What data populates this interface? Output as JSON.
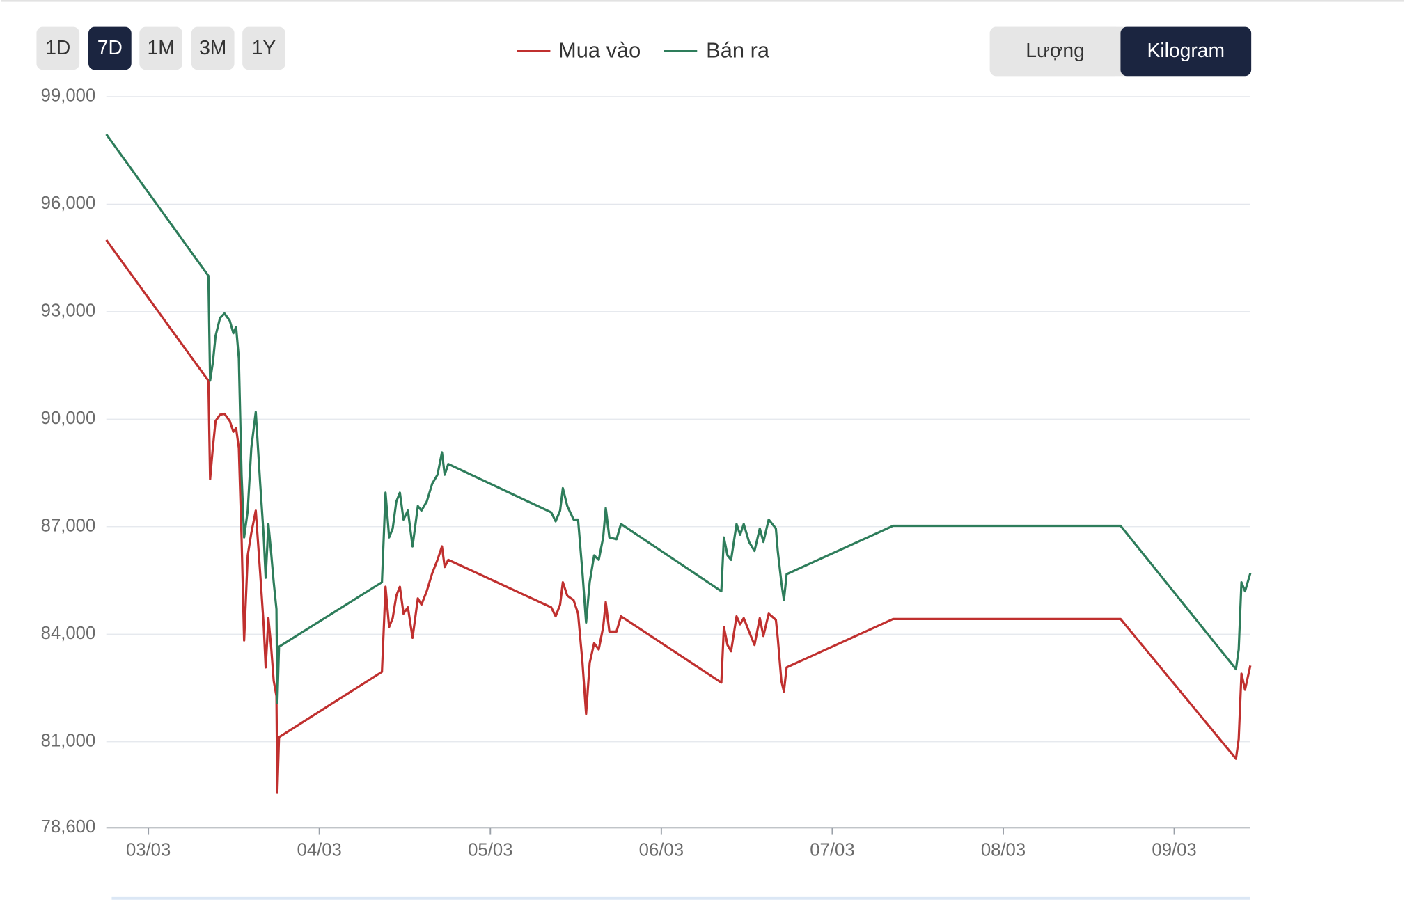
{
  "range_buttons": [
    "1D",
    "7D",
    "1M",
    "3M",
    "1Y"
  ],
  "selected_range": "7D",
  "unit_toggle": [
    "Lượng",
    "Kilogram"
  ],
  "selected_unit": "Kilogram",
  "chart_data": {
    "type": "line",
    "x": [
      2.754,
      3.351,
      3.361,
      3.377,
      3.393,
      3.419,
      3.445,
      3.476,
      3.497,
      3.513,
      3.529,
      3.545,
      3.56,
      3.581,
      3.602,
      3.628,
      3.654,
      3.675,
      3.686,
      3.702,
      3.717,
      3.733,
      3.749,
      3.754,
      3.764,
      4.366,
      4.387,
      4.408,
      4.429,
      4.45,
      4.471,
      4.492,
      4.518,
      4.545,
      4.576,
      4.597,
      4.628,
      4.66,
      4.691,
      4.717,
      4.733,
      4.754,
      5.356,
      5.382,
      5.408,
      5.424,
      5.45,
      5.487,
      5.513,
      5.539,
      5.56,
      5.581,
      5.607,
      5.634,
      5.66,
      5.675,
      5.696,
      5.738,
      5.764,
      6.351,
      6.366,
      6.387,
      6.408,
      6.44,
      6.461,
      6.482,
      6.513,
      6.545,
      6.576,
      6.597,
      6.628,
      6.67,
      6.681,
      6.702,
      6.717,
      6.733,
      7.356,
      8.686,
      9.361,
      9.377,
      9.393,
      9.414,
      9.445
    ],
    "series": [
      {
        "name": "Mua vào",
        "color": "#c0302f",
        "values": [
          95000,
          91075,
          88325,
          89200,
          89950,
          90125,
          90150,
          89950,
          89650,
          89750,
          89200,
          86700,
          83825,
          86200,
          86825,
          87450,
          85700,
          84200,
          83075,
          84450,
          83700,
          82700,
          82275,
          79575,
          81125,
          82950,
          85325,
          84200,
          84450,
          85075,
          85325,
          84575,
          84750,
          83900,
          85000,
          84825,
          85200,
          85700,
          86075,
          86450,
          85875,
          86075,
          84750,
          84500,
          84825,
          85450,
          85075,
          84950,
          84575,
          83200,
          81775,
          83200,
          83750,
          83575,
          84200,
          84900,
          84075,
          84075,
          84500,
          82650,
          84200,
          83700,
          83525,
          84500,
          84275,
          84450,
          84075,
          83700,
          84450,
          83950,
          84575,
          84400,
          83900,
          82700,
          82400,
          83075,
          84425,
          84425,
          80525,
          81075,
          82900,
          82450,
          83125
        ]
      },
      {
        "name": "Bán ra",
        "color": "#2e7d5b",
        "values": [
          97950,
          94000,
          91075,
          91575,
          92325,
          92825,
          92950,
          92750,
          92400,
          92575,
          91700,
          88450,
          86700,
          87450,
          89200,
          90200,
          88200,
          86700,
          85575,
          87075,
          86325,
          85450,
          84700,
          82075,
          83650,
          85450,
          87950,
          86700,
          86950,
          87700,
          87950,
          87200,
          87450,
          86450,
          87575,
          87450,
          87700,
          88200,
          88450,
          89075,
          88450,
          88750,
          87400,
          87150,
          87450,
          88075,
          87575,
          87200,
          87200,
          85700,
          84325,
          85450,
          86200,
          86075,
          86700,
          87525,
          86700,
          86650,
          87075,
          85200,
          86700,
          86200,
          86075,
          87075,
          86775,
          87075,
          86575,
          86325,
          86950,
          86575,
          87200,
          86950,
          86325,
          85450,
          84950,
          85675,
          87025,
          87025,
          83025,
          83575,
          85450,
          85200,
          85700
        ]
      }
    ],
    "xlim": [
      2.754,
      9.445
    ],
    "xticks": [
      {
        "value": 3,
        "label": "03/03"
      },
      {
        "value": 4,
        "label": "04/03"
      },
      {
        "value": 5,
        "label": "05/03"
      },
      {
        "value": 6,
        "label": "06/03"
      },
      {
        "value": 7,
        "label": "07/03"
      },
      {
        "value": 8,
        "label": "08/03"
      },
      {
        "value": 9,
        "label": "09/03"
      }
    ],
    "ylim": [
      78600,
      99000
    ],
    "yticks": [
      {
        "value": 78600,
        "label": "78,600"
      },
      {
        "value": 81000,
        "label": "81,000"
      },
      {
        "value": 84000,
        "label": "84,000"
      },
      {
        "value": 87000,
        "label": "87,000"
      },
      {
        "value": 90000,
        "label": "90,000"
      },
      {
        "value": 93000,
        "label": "93,000"
      },
      {
        "value": 96000,
        "label": "96,000"
      },
      {
        "value": 99000,
        "label": "99,000"
      }
    ],
    "grid": true
  }
}
